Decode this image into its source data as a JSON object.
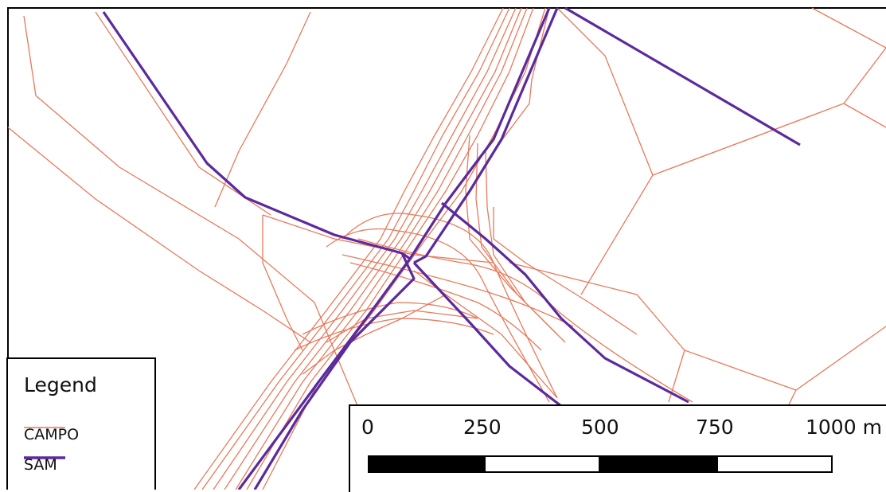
{
  "legend": {
    "title": "Legend",
    "items": [
      {
        "label": "CAMPO",
        "color": "#e8795a",
        "stroke": "thin"
      },
      {
        "label": "SAM",
        "color": "#5b2a9c",
        "stroke": "thick"
      }
    ]
  },
  "scalebar": {
    "ticks": [
      "0",
      "250",
      "500",
      "750",
      "1000 m"
    ],
    "segments": [
      "black",
      "white",
      "black",
      "white"
    ]
  },
  "colors": {
    "campo": "#e8795a",
    "sam": "#5b2a9c",
    "background": "#ffffff"
  }
}
